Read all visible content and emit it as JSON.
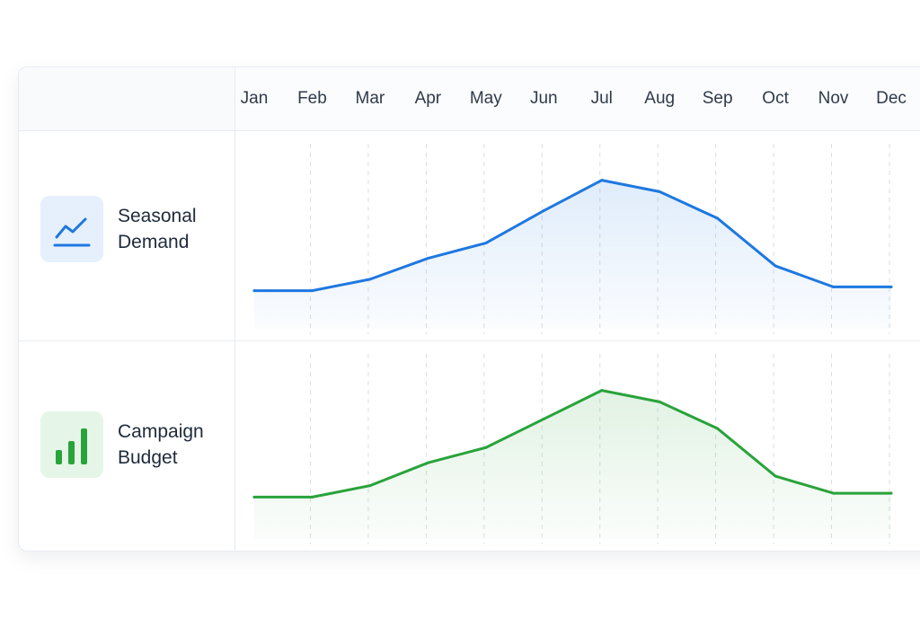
{
  "chart_data": {
    "type": "line",
    "categories": [
      "Jan",
      "Feb",
      "Mar",
      "Apr",
      "May",
      "Jun",
      "Jul",
      "Aug",
      "Sep",
      "Oct",
      "Nov",
      "Dec"
    ],
    "series": [
      {
        "name": "Seasonal Demand",
        "label_lines": [
          "Seasonal",
          "Demand"
        ],
        "values": [
          20,
          20,
          26,
          37,
          45,
          62,
          78,
          72,
          58,
          33,
          22,
          22
        ],
        "color": "#1e78e0",
        "tile_color": "#e6f0fd",
        "icon": "trend-line-icon"
      },
      {
        "name": "Campaign Budget",
        "label_lines": [
          "Campaign",
          "Budget"
        ],
        "values": [
          22,
          22,
          28,
          40,
          48,
          63,
          78,
          72,
          58,
          33,
          24,
          24
        ],
        "color": "#29a33a",
        "tile_color": "#e5f6e8",
        "icon": "bar-chart-icon"
      }
    ],
    "ylim": [
      0,
      100
    ],
    "grid": "vertical-dashed",
    "legend": "left"
  }
}
